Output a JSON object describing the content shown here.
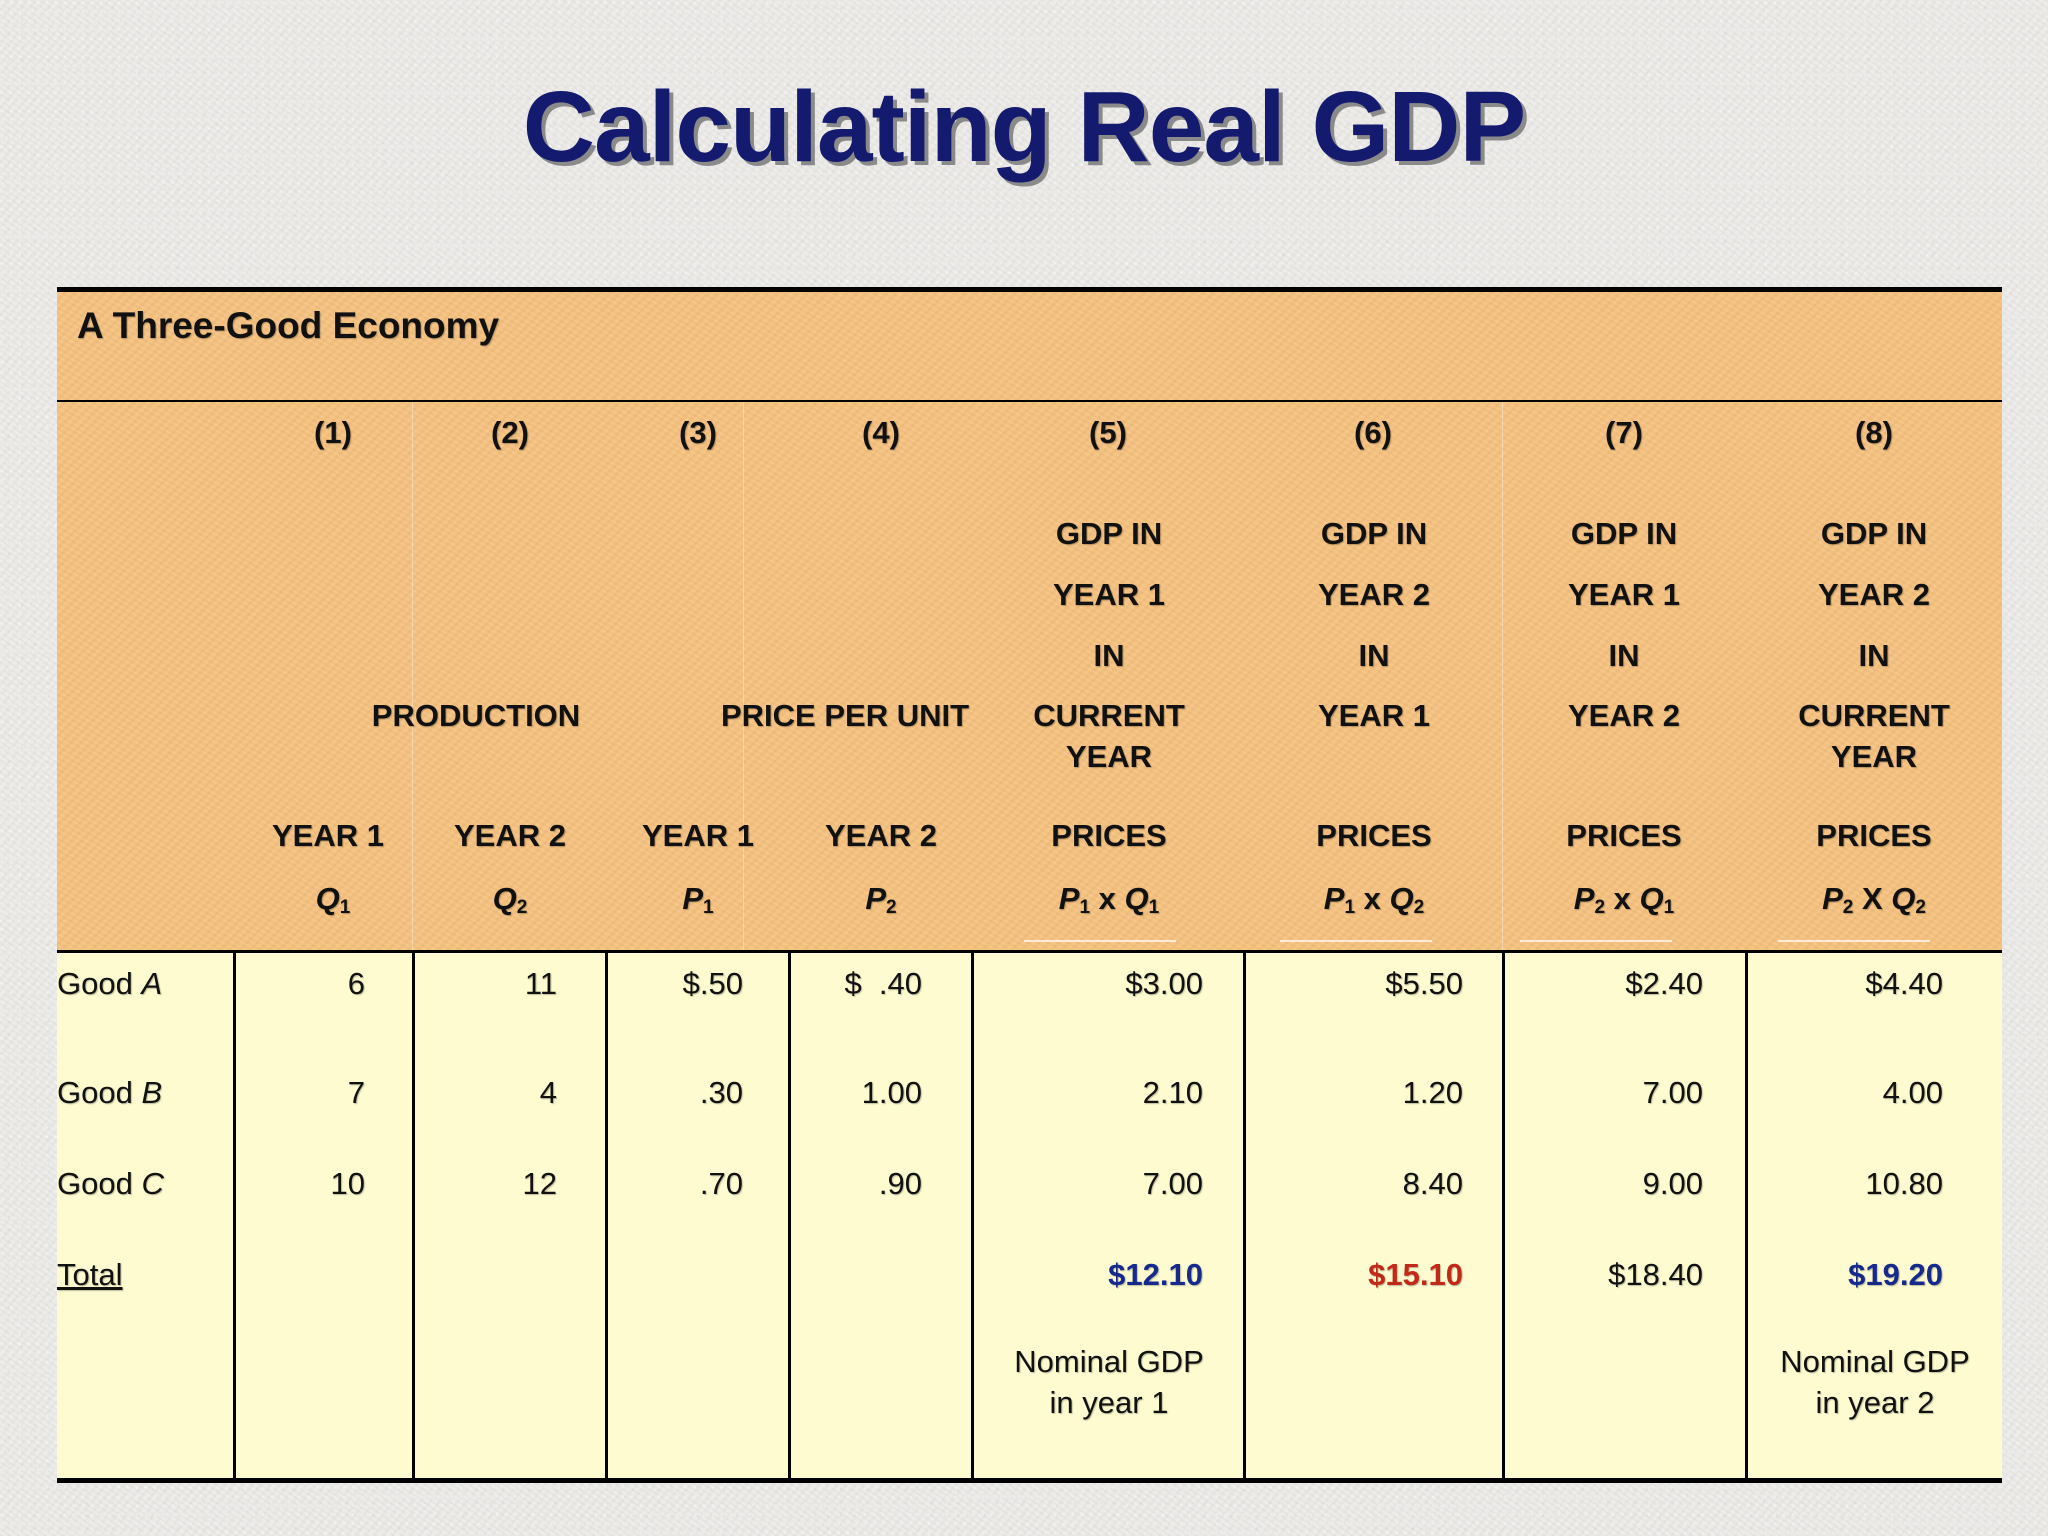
{
  "title": "Calculating Real GDP",
  "table": {
    "caption": "A Three-Good Economy",
    "col_numbers": [
      "(1)",
      "(2)",
      "(3)",
      "(4)",
      "(5)",
      "(6)",
      "(7)",
      "(8)"
    ],
    "group_production": "PRODUCTION",
    "group_price": "PRICE PER UNIT",
    "gdp_heads": [
      {
        "l1": "GDP IN",
        "l2": "YEAR 1",
        "l3": "IN",
        "l4": "CURRENT",
        "l5": "YEAR",
        "l6": "PRICES",
        "f1": "P",
        "s1": "1",
        "op": " x ",
        "f2": "Q",
        "s2": "1"
      },
      {
        "l1": "GDP IN",
        "l2": "YEAR 2",
        "l3": "IN",
        "l4": "YEAR 1",
        "l5": "",
        "l6": "PRICES",
        "f1": "P",
        "s1": "1",
        "op": " x ",
        "f2": "Q",
        "s2": "2"
      },
      {
        "l1": "GDP IN",
        "l2": "YEAR 1",
        "l3": "IN",
        "l4": "YEAR 2",
        "l5": "",
        "l6": "PRICES",
        "f1": "P",
        "s1": "2",
        "op": " x ",
        "f2": "Q",
        "s2": "1"
      },
      {
        "l1": "GDP IN",
        "l2": "YEAR 2",
        "l3": "IN",
        "l4": "CURRENT",
        "l5": "YEAR",
        "l6": "PRICES",
        "f1": "P",
        "s1": "2",
        "op": " X ",
        "f2": "Q",
        "s2": "2"
      }
    ],
    "year_heads": [
      "YEAR 1",
      "YEAR 2",
      "YEAR 1",
      "YEAR 2"
    ],
    "sym_heads": [
      {
        "f": "Q",
        "s": "1"
      },
      {
        "f": "Q",
        "s": "2"
      },
      {
        "f": "P",
        "s": "1"
      },
      {
        "f": "P",
        "s": "2"
      }
    ],
    "rows": [
      {
        "prefix": "Good ",
        "letter": "A",
        "cells": [
          "6",
          "11",
          "$.50",
          "$  .40",
          "$3.00",
          "$5.50",
          "$2.40",
          "$4.40"
        ]
      },
      {
        "prefix": "Good ",
        "letter": "B",
        "cells": [
          "7",
          "4",
          ".30",
          "1.00",
          "2.10",
          "1.20",
          "7.00",
          "4.00"
        ]
      },
      {
        "prefix": "Good ",
        "letter": "C",
        "cells": [
          "10",
          "12",
          ".70",
          ".90",
          "7.00",
          "8.40",
          "9.00",
          "10.80"
        ]
      }
    ],
    "total": {
      "label": "Total",
      "c5": "$12.10",
      "c6": "$15.10",
      "c7": "$18.40",
      "c8": "$19.20"
    },
    "notes": {
      "c5_l1": "Nominal GDP",
      "c5_l2": "in year 1",
      "c8_l1": "Nominal GDP",
      "c8_l2": "in year 2"
    },
    "colors": {
      "header_bg": "#f7c27e",
      "body_bg": "#fdfbcf",
      "title": "#141a6e",
      "blue_total": "#16298d",
      "red_total": "#c22a18"
    }
  }
}
